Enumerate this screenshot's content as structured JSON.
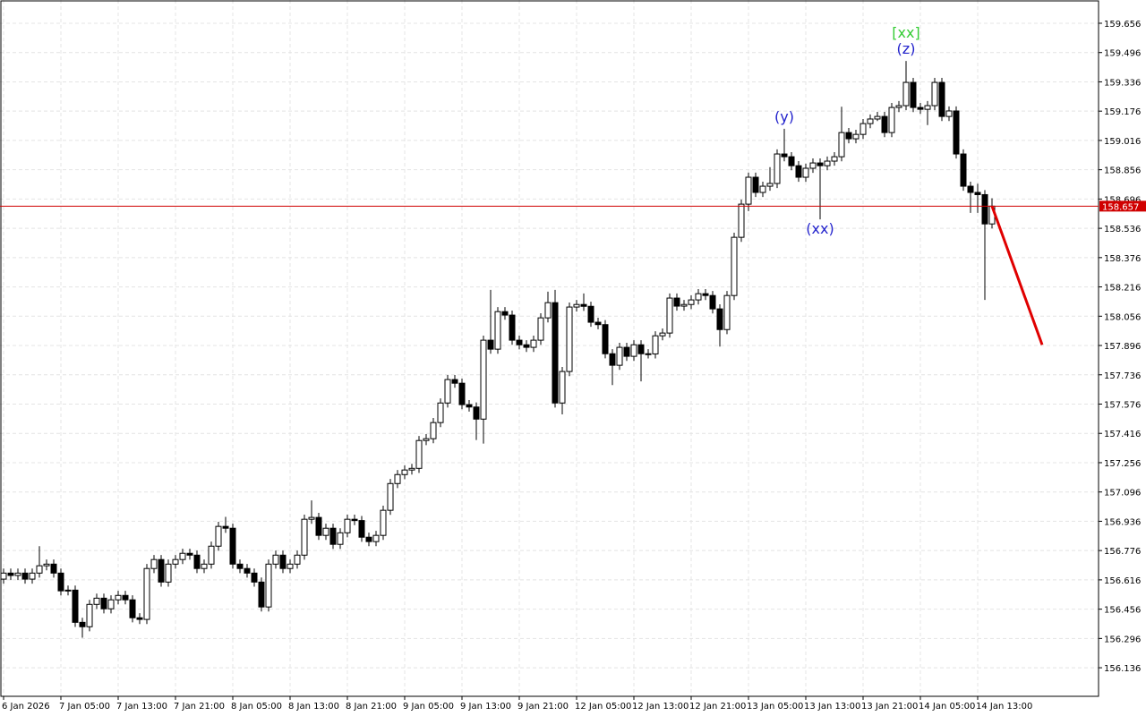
{
  "chart_data": {
    "type": "candlestick",
    "categories": [
      "6 Jan 2026",
      null,
      null,
      null,
      null,
      null,
      null,
      null,
      "7 Jan 05:00",
      null,
      null,
      null,
      null,
      null,
      null,
      null,
      "7 Jan 13:00",
      null,
      null,
      null,
      null,
      null,
      null,
      null,
      "7 Jan 21:00",
      null,
      null,
      null,
      null,
      null,
      null,
      null,
      "8 Jan 05:00",
      null,
      null,
      null,
      null,
      null,
      null,
      null,
      "8 Jan 13:00",
      null,
      null,
      null,
      null,
      null,
      null,
      null,
      "8 Jan 21:00",
      null,
      null,
      null,
      null,
      null,
      null,
      null,
      "9 Jan 05:00",
      null,
      null,
      null,
      null,
      null,
      null,
      null,
      "9 Jan 13:00",
      null,
      null,
      null,
      null,
      null,
      null,
      null,
      "9 Jan 21:00",
      null,
      null,
      null,
      null,
      null,
      null,
      null,
      "12 Jan 05:00",
      null,
      null,
      null,
      null,
      null,
      null,
      null,
      "12 Jan 13:00",
      null,
      null,
      null,
      null,
      null,
      null,
      null,
      "12 Jan 21:00",
      null,
      null,
      null,
      null,
      null,
      null,
      null,
      "13 Jan 05:00",
      null,
      null,
      null,
      null,
      null,
      null,
      null,
      "13 Jan 13:00",
      null,
      null,
      null,
      null,
      null,
      null,
      null,
      "13 Jan 21:00",
      null,
      null,
      null,
      null,
      null,
      null,
      null,
      "14 Jan 05:00",
      null,
      null,
      null,
      null,
      null,
      null,
      null,
      "14 Jan 13:00",
      null,
      null
    ],
    "open": [
      156.62,
      156.653,
      156.64,
      156.653,
      156.62,
      156.653,
      156.693,
      156.702,
      156.653,
      156.556,
      156.56,
      156.384,
      156.36,
      156.482,
      156.516,
      156.458,
      156.507,
      156.531,
      156.507,
      156.409,
      156.4,
      156.678,
      156.727,
      156.604,
      156.702,
      156.727,
      156.761,
      156.751,
      156.678,
      156.702,
      156.8,
      156.908,
      156.898,
      156.702,
      156.678,
      156.653,
      156.604,
      156.468,
      156.702,
      156.751,
      156.678,
      156.702,
      156.751,
      156.947,
      156.957,
      156.859,
      156.898,
      156.81,
      156.873,
      156.947,
      156.94,
      156.849,
      156.825,
      156.859,
      156.996,
      157.142,
      157.191,
      157.216,
      157.225,
      157.377,
      157.387,
      157.475,
      157.582,
      157.71,
      157.69,
      157.573,
      157.56,
      157.494,
      157.925,
      157.876,
      158.081,
      158.062,
      157.925,
      157.9,
      157.886,
      157.925,
      158.047,
      158.13,
      157.582,
      157.754,
      158.106,
      158.12,
      158.11,
      158.023,
      158.01,
      157.851,
      157.788,
      157.886,
      157.837,
      157.9,
      157.851,
      157.85,
      157.949,
      157.964,
      158.155,
      158.111,
      158.12,
      158.145,
      158.179,
      158.169,
      158.096,
      157.983,
      158.169,
      158.487,
      158.668,
      158.815,
      158.732,
      158.766,
      158.781,
      158.942,
      158.927,
      158.878,
      158.815,
      158.864,
      158.893,
      158.878,
      158.903,
      158.927,
      159.059,
      159.025,
      159.049,
      159.108,
      159.133,
      159.147,
      159.059,
      159.196,
      159.206,
      159.333,
      159.196,
      159.186,
      159.206,
      159.333,
      159.147,
      159.177,
      158.942,
      158.766,
      158.732,
      158.72,
      158.56
    ],
    "high": [
      156.678,
      156.678,
      156.678,
      156.678,
      156.678,
      156.8,
      156.727,
      156.727,
      156.678,
      156.585,
      156.585,
      156.409,
      156.507,
      156.541,
      156.541,
      156.532,
      156.556,
      156.556,
      156.532,
      156.434,
      156.703,
      156.752,
      156.752,
      156.727,
      156.752,
      156.786,
      156.786,
      156.776,
      156.727,
      156.825,
      156.933,
      156.96,
      156.923,
      156.727,
      156.703,
      156.678,
      156.629,
      156.727,
      156.776,
      156.776,
      156.727,
      156.776,
      156.972,
      157.05,
      156.982,
      156.923,
      156.923,
      156.898,
      156.972,
      156.972,
      156.965,
      156.874,
      156.884,
      157.021,
      157.167,
      157.216,
      157.241,
      157.25,
      157.402,
      157.412,
      157.5,
      157.607,
      157.735,
      157.735,
      157.715,
      157.598,
      157.585,
      157.95,
      158.2,
      158.106,
      158.106,
      158.087,
      157.95,
      157.925,
      157.95,
      158.072,
      158.19,
      158.2,
      157.779,
      158.131,
      158.145,
      158.18,
      158.135,
      158.048,
      158.035,
      157.876,
      157.911,
      157.911,
      157.925,
      157.925,
      157.876,
      157.974,
      157.989,
      158.18,
      158.18,
      158.145,
      158.17,
      158.204,
      158.204,
      158.194,
      158.121,
      158.194,
      158.512,
      158.693,
      158.84,
      158.84,
      158.791,
      158.87,
      158.967,
      159.08,
      158.952,
      158.903,
      158.889,
      158.918,
      158.918,
      158.928,
      158.952,
      159.2,
      159.084,
      159.074,
      159.133,
      159.158,
      159.172,
      159.172,
      159.221,
      159.231,
      159.45,
      159.358,
      159.221,
      159.231,
      159.358,
      159.358,
      159.202,
      159.202,
      158.967,
      158.791,
      158.78,
      158.745,
      158.7
    ],
    "low": [
      156.595,
      156.615,
      156.615,
      156.595,
      156.595,
      156.628,
      156.668,
      156.628,
      156.531,
      156.531,
      156.359,
      156.3,
      156.335,
      156.457,
      156.433,
      156.433,
      156.482,
      156.482,
      156.384,
      156.375,
      156.375,
      156.653,
      156.579,
      156.579,
      156.677,
      156.702,
      156.726,
      156.653,
      156.653,
      156.677,
      156.775,
      156.873,
      156.677,
      156.653,
      156.628,
      156.579,
      156.443,
      156.443,
      156.677,
      156.653,
      156.653,
      156.677,
      156.726,
      156.922,
      156.834,
      156.834,
      156.785,
      156.785,
      156.848,
      156.915,
      156.824,
      156.8,
      156.8,
      156.834,
      156.971,
      157.117,
      157.166,
      157.191,
      157.2,
      157.352,
      157.362,
      157.45,
      157.557,
      157.665,
      157.548,
      157.535,
      157.38,
      157.36,
      157.851,
      157.851,
      158.037,
      157.9,
      157.875,
      157.861,
      157.861,
      157.9,
      158.022,
      157.557,
      157.52,
      157.729,
      158.081,
      158.085,
      157.998,
      157.985,
      157.826,
      157.68,
      157.763,
      157.812,
      157.812,
      157.7,
      157.825,
      157.825,
      157.924,
      157.939,
      158.086,
      158.086,
      158.095,
      158.12,
      158.144,
      158.071,
      157.89,
      157.958,
      158.144,
      158.462,
      158.63,
      158.707,
      158.707,
      158.741,
      158.756,
      158.902,
      158.853,
      158.79,
      158.79,
      158.839,
      158.585,
      158.853,
      158.878,
      158.902,
      159.0,
      159.0,
      159.024,
      159.083,
      159.122,
      159.034,
      159.034,
      159.171,
      159.181,
      159.171,
      159.161,
      159.1,
      159.181,
      159.122,
      159.122,
      158.917,
      158.741,
      158.62,
      158.62,
      158.145,
      158.535
    ],
    "close": [
      156.653,
      156.64,
      156.653,
      156.62,
      156.653,
      156.693,
      156.702,
      156.653,
      156.556,
      156.56,
      156.384,
      156.36,
      156.482,
      156.516,
      156.458,
      156.507,
      156.531,
      156.507,
      156.409,
      156.4,
      156.678,
      156.727,
      156.604,
      156.702,
      156.727,
      156.761,
      156.751,
      156.678,
      156.702,
      156.8,
      156.908,
      156.898,
      156.702,
      156.678,
      156.653,
      156.604,
      156.468,
      156.702,
      156.751,
      156.678,
      156.702,
      156.751,
      156.947,
      156.957,
      156.859,
      156.898,
      156.81,
      156.873,
      156.947,
      156.94,
      156.849,
      156.825,
      156.859,
      156.996,
      157.142,
      157.191,
      157.216,
      157.225,
      157.377,
      157.387,
      157.475,
      157.582,
      157.71,
      157.69,
      157.573,
      157.56,
      157.494,
      157.925,
      157.876,
      158.081,
      158.062,
      157.925,
      157.9,
      157.886,
      157.925,
      158.047,
      158.13,
      157.582,
      157.754,
      158.106,
      158.12,
      158.11,
      158.023,
      158.01,
      157.851,
      157.788,
      157.886,
      157.837,
      157.9,
      157.851,
      157.85,
      157.949,
      157.964,
      158.155,
      158.111,
      158.12,
      158.145,
      158.179,
      158.169,
      158.096,
      157.983,
      158.169,
      158.487,
      158.668,
      158.815,
      158.732,
      158.766,
      158.781,
      158.942,
      158.927,
      158.878,
      158.815,
      158.864,
      158.893,
      158.878,
      158.903,
      158.927,
      159.059,
      159.025,
      159.049,
      159.108,
      159.133,
      159.147,
      159.059,
      159.196,
      159.206,
      159.333,
      159.196,
      159.186,
      159.206,
      159.333,
      159.147,
      159.177,
      158.942,
      158.766,
      158.732,
      158.72,
      158.56,
      158.657
    ],
    "up_color": "#ffffff",
    "down_color": "#000000",
    "outline_color": "#000000",
    "ylim": [
      155.98,
      159.783
    ],
    "yticks": [
      156.136,
      156.296,
      156.456,
      156.616,
      156.776,
      156.936,
      157.096,
      157.256,
      157.416,
      157.576,
      157.736,
      157.896,
      158.056,
      158.216,
      158.376,
      158.536,
      158.696,
      158.856,
      159.016,
      159.176,
      159.336,
      159.496,
      159.656
    ],
    "grid": true,
    "current_price": 158.657,
    "current_price_color": "#d00000",
    "forecast": {
      "from": [
        138,
        158.657
      ],
      "to": [
        145,
        157.9
      ],
      "color": "#e00000"
    },
    "annotations": [
      {
        "text": "[xx]",
        "color": "#33cc33",
        "candle": 126,
        "position": "above"
      },
      {
        "text": "(z)",
        "color": "#2222cc",
        "candle": 126,
        "position": "above"
      },
      {
        "text": "(y)",
        "color": "#2222cc",
        "candle": 109,
        "position": "above"
      },
      {
        "text": "(xx)",
        "color": "#2222cc",
        "candle": 114,
        "position": "below"
      }
    ]
  }
}
